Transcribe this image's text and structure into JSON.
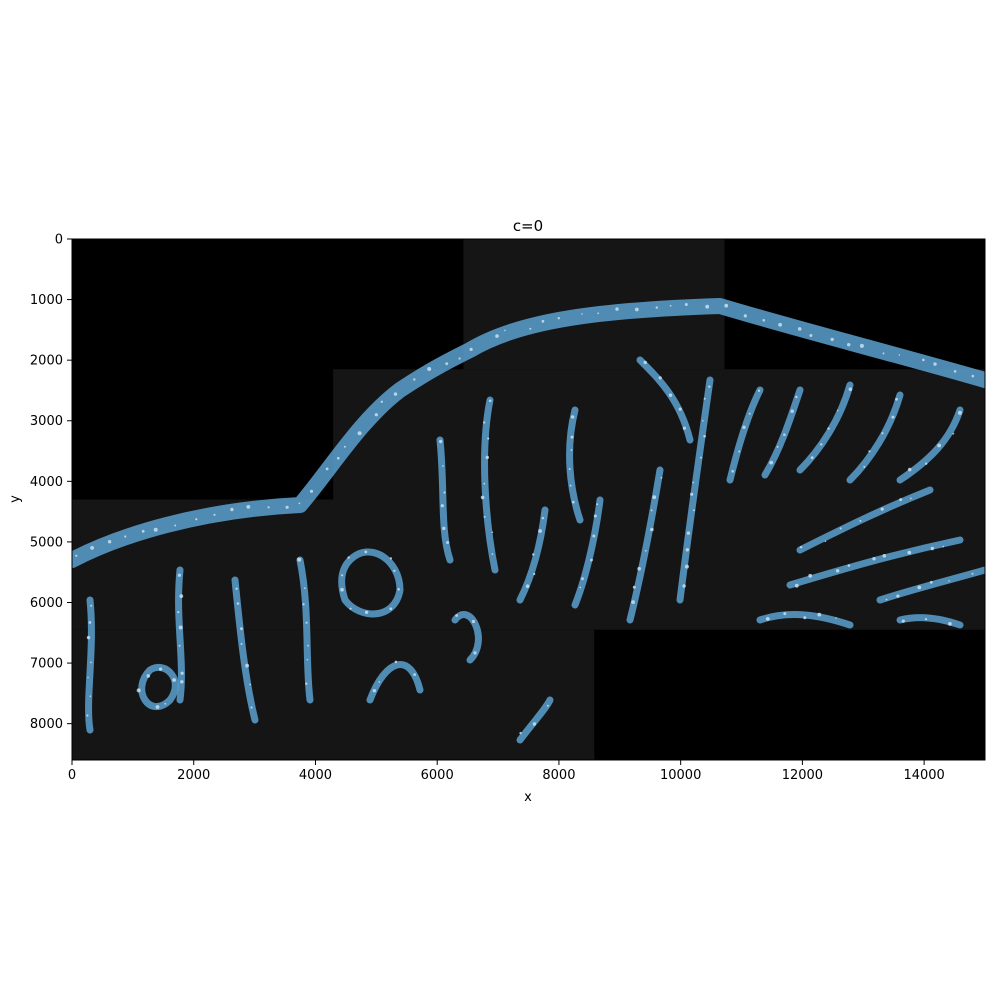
{
  "figure": {
    "title": "c=0",
    "xlabel": "x",
    "ylabel": "y"
  },
  "colors": {
    "background": "#000000",
    "tissue_tile": "#151515",
    "tissue_signal": "#5aa0cf",
    "tissue_highlight": "#cfe6f5"
  },
  "chart_data": {
    "type": "heatmap",
    "title": "c=0",
    "xlabel": "x",
    "ylabel": "y",
    "xlim": [
      0,
      15000
    ],
    "ylim": [
      8600,
      0
    ],
    "x_ticks": [
      0,
      2000,
      4000,
      6000,
      8000,
      10000,
      12000,
      14000
    ],
    "y_ticks": [
      0,
      1000,
      2000,
      3000,
      4000,
      5000,
      6000,
      7000,
      8000
    ],
    "imaged_tiles": [
      {
        "x0": 6430,
        "x1": 10720,
        "y0": 0,
        "y1": 2150
      },
      {
        "x0": 4290,
        "x1": 15000,
        "y0": 2150,
        "y1": 4300
      },
      {
        "x0": 0,
        "x1": 15000,
        "y0": 4300,
        "y1": 6450
      },
      {
        "x0": 0,
        "x1": 8580,
        "y0": 6450,
        "y1": 8600
      }
    ]
  }
}
